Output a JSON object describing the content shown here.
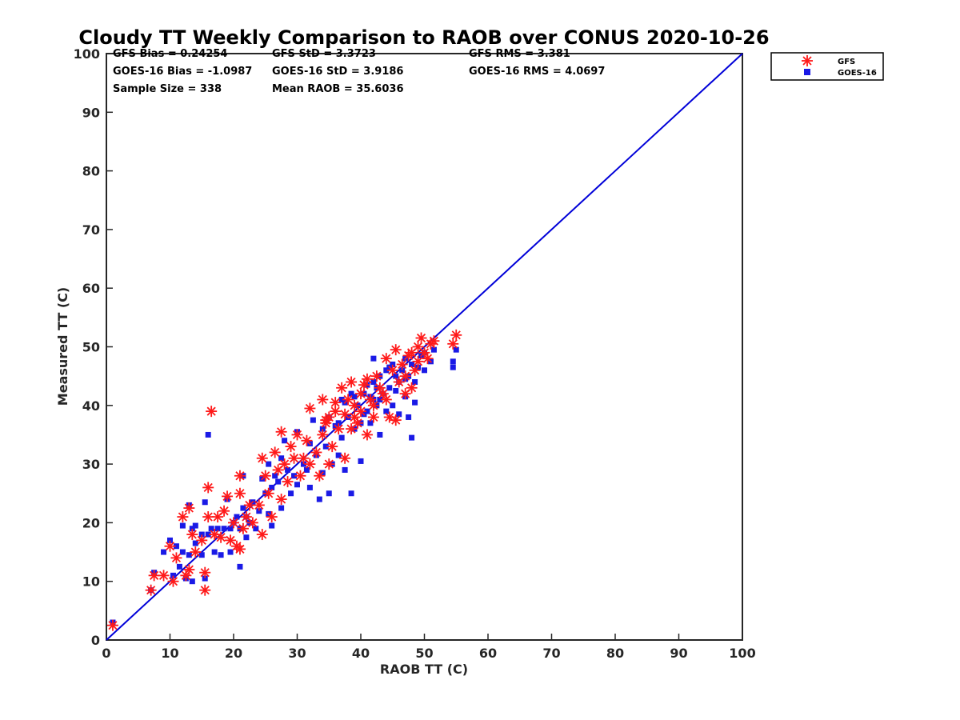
{
  "chart_data": {
    "type": "scatter",
    "title": "Cloudy TT Weekly Comparison to RAOB over CONUS 2020-10-26",
    "xlabel": "RAOB TT (C)",
    "ylabel": "Measured TT (C)",
    "xlim": [
      0,
      100
    ],
    "ylim": [
      0,
      100
    ],
    "xticks": [
      "0",
      "10",
      "20",
      "30",
      "40",
      "50",
      "60",
      "70",
      "80",
      "90",
      "100"
    ],
    "yticks": [
      "0",
      "10",
      "20",
      "30",
      "40",
      "50",
      "60",
      "70",
      "80",
      "90",
      "100"
    ],
    "grid": false,
    "legend_position": "top-right, outside plot",
    "reference_line": {
      "label": "1:1",
      "x": [
        0,
        100
      ],
      "y": [
        0,
        100
      ],
      "color": "#0000d8"
    },
    "stats": [
      [
        "GFS Bias = 0.24254",
        "GFS StD = 3.3723",
        "GFS RMS = 3.381"
      ],
      [
        "GOES-16 Bias = -1.0987",
        "GOES-16 StD = 3.9186",
        "GOES-16 RMS = 4.0697"
      ],
      [
        "Sample Size = 338",
        "Mean RAOB = 35.6036"
      ]
    ],
    "series": [
      {
        "name": "GFS",
        "marker": "asterisk",
        "color": "#ff1a1a",
        "points": [
          [
            1,
            2.5
          ],
          [
            7,
            8.5
          ],
          [
            7.5,
            11
          ],
          [
            9,
            11
          ],
          [
            10,
            16
          ],
          [
            10.5,
            10
          ],
          [
            11,
            14
          ],
          [
            12,
            21
          ],
          [
            12.5,
            11
          ],
          [
            13,
            12
          ],
          [
            13.5,
            18
          ],
          [
            13,
            22.5
          ],
          [
            14,
            15
          ],
          [
            15,
            17
          ],
          [
            15.5,
            11.5
          ],
          [
            15.5,
            8.5
          ],
          [
            16,
            21
          ],
          [
            16,
            26
          ],
          [
            16.5,
            39
          ],
          [
            17,
            18
          ],
          [
            17.5,
            21
          ],
          [
            18,
            17.5
          ],
          [
            18.5,
            22
          ],
          [
            19,
            24.5
          ],
          [
            19.5,
            17
          ],
          [
            20,
            20
          ],
          [
            20.5,
            16
          ],
          [
            21,
            15.5
          ],
          [
            21.5,
            19
          ],
          [
            21,
            25
          ],
          [
            21,
            28
          ],
          [
            22,
            21
          ],
          [
            22.5,
            23
          ],
          [
            23,
            20
          ],
          [
            24,
            23
          ],
          [
            24.5,
            18
          ],
          [
            24.5,
            31
          ],
          [
            25,
            28
          ],
          [
            25.5,
            25
          ],
          [
            26,
            21
          ],
          [
            26.5,
            32
          ],
          [
            27,
            29
          ],
          [
            27.5,
            35.5
          ],
          [
            27.5,
            24
          ],
          [
            28,
            30
          ],
          [
            28.5,
            27
          ],
          [
            29,
            33
          ],
          [
            29.5,
            31
          ],
          [
            30,
            35
          ],
          [
            30.5,
            28
          ],
          [
            31,
            31
          ],
          [
            31.5,
            34
          ],
          [
            32,
            39.5
          ],
          [
            32,
            30
          ],
          [
            33,
            32
          ],
          [
            33.5,
            28
          ],
          [
            34,
            35
          ],
          [
            34,
            41
          ],
          [
            34.5,
            37
          ],
          [
            35,
            30
          ],
          [
            35,
            38
          ],
          [
            35.5,
            33
          ],
          [
            36,
            40.5
          ],
          [
            36.5,
            36
          ],
          [
            37,
            43
          ],
          [
            37.5,
            38.5
          ],
          [
            37.5,
            31
          ],
          [
            38,
            41
          ],
          [
            38.5,
            36
          ],
          [
            39,
            40
          ],
          [
            39.5,
            37
          ],
          [
            40,
            39
          ],
          [
            40.5,
            43.5
          ],
          [
            41,
            35
          ],
          [
            41,
            44.5
          ],
          [
            41.5,
            41
          ],
          [
            42,
            38
          ],
          [
            42,
            40
          ],
          [
            42.5,
            45
          ],
          [
            43,
            43
          ],
          [
            43.5,
            42
          ],
          [
            44,
            48
          ],
          [
            44,
            41
          ],
          [
            44.5,
            38
          ],
          [
            45,
            46
          ],
          [
            45.5,
            49.5
          ],
          [
            45.5,
            37.5
          ],
          [
            46,
            44
          ],
          [
            46.5,
            47
          ],
          [
            47,
            42
          ],
          [
            47,
            45
          ],
          [
            47.5,
            48.5
          ],
          [
            48,
            43
          ],
          [
            48,
            49
          ],
          [
            48.5,
            46
          ],
          [
            49,
            50
          ],
          [
            49,
            47.5
          ],
          [
            49.5,
            51.5
          ],
          [
            50,
            49
          ],
          [
            50.5,
            48
          ],
          [
            51,
            50.5
          ],
          [
            51.5,
            51
          ],
          [
            54.5,
            50.5
          ],
          [
            55,
            52
          ],
          [
            40,
            42
          ],
          [
            39,
            38
          ],
          [
            38.5,
            44
          ],
          [
            36,
            39
          ],
          [
            34.5,
            37.5
          ]
        ]
      },
      {
        "name": "GOES-16",
        "marker": "square",
        "color": "#1a1ae6",
        "points": [
          [
            1,
            3
          ],
          [
            7.5,
            11.5
          ],
          [
            7,
            8.5
          ],
          [
            9,
            15
          ],
          [
            10,
            17
          ],
          [
            10.5,
            11
          ],
          [
            11,
            16
          ],
          [
            11.5,
            12.5
          ],
          [
            12,
            19.5
          ],
          [
            12,
            15
          ],
          [
            12.5,
            10.5
          ],
          [
            13,
            14.5
          ],
          [
            13,
            23
          ],
          [
            13.5,
            19
          ],
          [
            13.5,
            10
          ],
          [
            14,
            16.5
          ],
          [
            14,
            19.5
          ],
          [
            15,
            18
          ],
          [
            15,
            14.5
          ],
          [
            15.5,
            10.5
          ],
          [
            15.5,
            23.5
          ],
          [
            16,
            35
          ],
          [
            16,
            18
          ],
          [
            16.5,
            19
          ],
          [
            17,
            15
          ],
          [
            17.5,
            19
          ],
          [
            18,
            14.5
          ],
          [
            18.5,
            19
          ],
          [
            19,
            24
          ],
          [
            19.5,
            15
          ],
          [
            19.5,
            19
          ],
          [
            20,
            20
          ],
          [
            20.5,
            21
          ],
          [
            21,
            12.5
          ],
          [
            21,
            19
          ],
          [
            21.5,
            22.5
          ],
          [
            21.5,
            28
          ],
          [
            22,
            17.5
          ],
          [
            22,
            21
          ],
          [
            22.5,
            20
          ],
          [
            23,
            23.5
          ],
          [
            23.5,
            19
          ],
          [
            24,
            22
          ],
          [
            24.5,
            27.5
          ],
          [
            25,
            25
          ],
          [
            25.5,
            30
          ],
          [
            25.5,
            21.5
          ],
          [
            26,
            19.5
          ],
          [
            26,
            26
          ],
          [
            26.5,
            28
          ],
          [
            27,
            27
          ],
          [
            27.5,
            31
          ],
          [
            27.5,
            22.5
          ],
          [
            28,
            34
          ],
          [
            28.5,
            29
          ],
          [
            29,
            25
          ],
          [
            29.5,
            28
          ],
          [
            30,
            35.5
          ],
          [
            30,
            26.5
          ],
          [
            31,
            30
          ],
          [
            31.5,
            29
          ],
          [
            32,
            26
          ],
          [
            32,
            33.5
          ],
          [
            32.5,
            37.5
          ],
          [
            33,
            31.5
          ],
          [
            33.5,
            24
          ],
          [
            34,
            36
          ],
          [
            34,
            28.5
          ],
          [
            34.5,
            33
          ],
          [
            35,
            38
          ],
          [
            35,
            25
          ],
          [
            35.5,
            30
          ],
          [
            36,
            36.5
          ],
          [
            36.5,
            31.5
          ],
          [
            37,
            41
          ],
          [
            37,
            34.5
          ],
          [
            37.5,
            29
          ],
          [
            38,
            38
          ],
          [
            38.5,
            25
          ],
          [
            38.5,
            42
          ],
          [
            39,
            36
          ],
          [
            39.5,
            40
          ],
          [
            40,
            37
          ],
          [
            40,
            30.5
          ],
          [
            40.5,
            42
          ],
          [
            41,
            39
          ],
          [
            41,
            43.5
          ],
          [
            41.5,
            37
          ],
          [
            42,
            41
          ],
          [
            42,
            44
          ],
          [
            42.5,
            40
          ],
          [
            43,
            45
          ],
          [
            43,
            35
          ],
          [
            43.5,
            42
          ],
          [
            44,
            46
          ],
          [
            44,
            39
          ],
          [
            44.5,
            43
          ],
          [
            45,
            40
          ],
          [
            45,
            47
          ],
          [
            45.5,
            42.5
          ],
          [
            46,
            44
          ],
          [
            46,
            38.5
          ],
          [
            46.5,
            46
          ],
          [
            47,
            41.5
          ],
          [
            47,
            48
          ],
          [
            47.5,
            38
          ],
          [
            47.5,
            45
          ],
          [
            48,
            34.5
          ],
          [
            48,
            47
          ],
          [
            48.5,
            44
          ],
          [
            48.5,
            40.5
          ],
          [
            49,
            46.5
          ],
          [
            49.5,
            48.5
          ],
          [
            50,
            46
          ],
          [
            50,
            49
          ],
          [
            51,
            47.5
          ],
          [
            51.5,
            49.5
          ],
          [
            54.5,
            46.5
          ],
          [
            54.5,
            47.5
          ],
          [
            55,
            49.5
          ],
          [
            42,
            48
          ],
          [
            40.5,
            38.5
          ],
          [
            44.5,
            46.5
          ],
          [
            39,
            41.5
          ],
          [
            36.5,
            37
          ],
          [
            37.5,
            40.5
          ],
          [
            43,
            41
          ],
          [
            45.5,
            45
          ],
          [
            47,
            44.5
          ],
          [
            41.5,
            41.5
          ],
          [
            42.5,
            43
          ]
        ]
      }
    ]
  }
}
